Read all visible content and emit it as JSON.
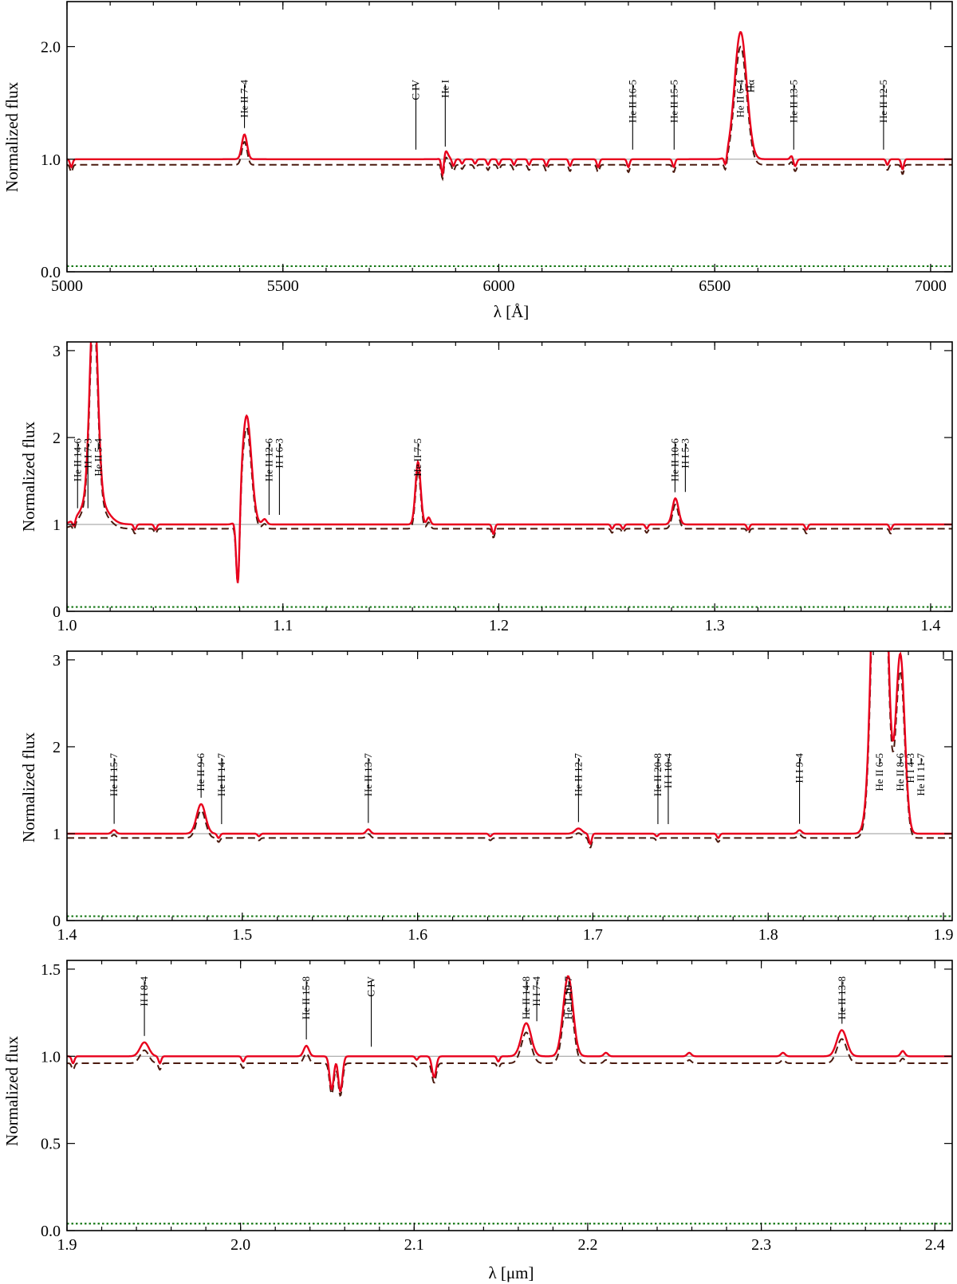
{
  "colors": {
    "model": "#e8001c",
    "observed": "#4a1a0f",
    "dotted": "#1a7a1a",
    "reference": "#999999"
  },
  "chart_data": [
    {
      "type": "line",
      "xlabel": "λ [Å]",
      "ylabel": "Normalized flux",
      "xlim": [
        5000,
        7050
      ],
      "ylim": [
        0,
        2.4
      ],
      "xticks": [
        5000,
        5500,
        6000,
        6500,
        7000
      ],
      "yticks": [
        0.0,
        1.0,
        2.0
      ],
      "ytick_labels": [
        "0.0",
        "1.0",
        "2.0"
      ],
      "continuum": 1.0,
      "series_styles": [
        "solid-red",
        "dashed-brown",
        "dotted-green"
      ],
      "dashed_level": 0.95,
      "dotted_level": 0.05,
      "emission": [
        [
          5411,
          0.22,
          6
        ],
        [
          5876,
          0.08,
          6
        ],
        [
          6560,
          1.13,
          14
        ],
        [
          6680,
          0.05,
          4
        ]
      ],
      "absorption": [
        [
          5010,
          0.07,
          3
        ],
        [
          5870,
          0.18,
          3
        ],
        [
          5895,
          0.06,
          3
        ],
        [
          5915,
          0.04,
          3
        ],
        [
          5945,
          0.04,
          3
        ],
        [
          5975,
          0.05,
          3
        ],
        [
          6000,
          0.05,
          3
        ],
        [
          6035,
          0.05,
          3
        ],
        [
          6070,
          0.05,
          3
        ],
        [
          6110,
          0.06,
          3
        ],
        [
          6165,
          0.06,
          3
        ],
        [
          6230,
          0.07,
          3
        ],
        [
          6300,
          0.07,
          3
        ],
        [
          6405,
          0.07,
          3
        ],
        [
          6525,
          0.09,
          3
        ],
        [
          6685,
          0.08,
          4
        ],
        [
          6900,
          0.05,
          3
        ],
        [
          6935,
          0.09,
          3
        ]
      ],
      "lines": [
        {
          "label": "He II 7-4",
          "x": 5411
        },
        {
          "label": "C IV",
          "x": 5808
        },
        {
          "label": "He I",
          "x": 5876
        },
        {
          "label": "He II 16-5",
          "x": 6310
        },
        {
          "label": "He II 15-5",
          "x": 6406
        },
        {
          "label": "He II 6-4",
          "x": 6560
        },
        {
          "label": "Hα",
          "x": 6563
        },
        {
          "label": "He II 13-5",
          "x": 6683
        },
        {
          "label": "He II 12-5",
          "x": 6891
        }
      ]
    },
    {
      "type": "line",
      "xlabel": "",
      "ylabel": "Normalized flux",
      "xlim": [
        1.0,
        1.41
      ],
      "ylim": [
        0,
        3.1
      ],
      "xticks": [
        1.0,
        1.1,
        1.2,
        1.3,
        1.4
      ],
      "xtick_labels": [
        "1.0",
        "1.1",
        "1.2",
        "1.3",
        "1.4"
      ],
      "yticks": [
        0,
        1,
        2,
        3
      ],
      "ytick_labels": [
        "0",
        "1",
        "2",
        "3"
      ],
      "continuum": 1.0,
      "series_styles": [
        "solid-red",
        "dashed-brown",
        "dotted-green"
      ],
      "dashed_level": 0.95,
      "dotted_level": 0.05,
      "emission": [
        [
          1.0124,
          2.3,
          0.0018
        ],
        [
          1.0124,
          0.35,
          0.005
        ],
        [
          1.0832,
          1.25,
          0.0022
        ],
        [
          1.0915,
          0.06,
          0.001
        ],
        [
          1.1626,
          0.72,
          0.0012
        ],
        [
          1.1675,
          0.08,
          0.0008
        ],
        [
          1.2818,
          0.3,
          0.0014
        ]
      ],
      "absorption": [
        [
          1.0792,
          0.9,
          0.0008
        ],
        [
          1.0032,
          0.08,
          0.0006
        ],
        [
          1.0315,
          0.06,
          0.0006
        ],
        [
          1.041,
          0.06,
          0.0006
        ],
        [
          1.1975,
          0.11,
          0.0006
        ],
        [
          1.2525,
          0.05,
          0.0006
        ],
        [
          1.2575,
          0.05,
          0.0006
        ],
        [
          1.2685,
          0.05,
          0.0006
        ],
        [
          1.3155,
          0.06,
          0.0006
        ],
        [
          1.3425,
          0.06,
          0.0006
        ],
        [
          1.3815,
          0.06,
          0.0006
        ]
      ],
      "lines": [
        {
          "label": "He II 14-6",
          "x": 1.0049
        },
        {
          "label": "H I 7-3",
          "x": 1.0049
        },
        {
          "label": "He II 5-4",
          "x": 1.0124
        },
        {
          "label": "He II 12-6",
          "x": 1.0936
        },
        {
          "label": "H I 6-3",
          "x": 1.0938
        },
        {
          "label": "He II 7-5",
          "x": 1.1626
        },
        {
          "label": "He II 10-6",
          "x": 1.2816
        },
        {
          "label": "H I 5-3",
          "x": 1.2818
        }
      ]
    },
    {
      "type": "line",
      "xlabel": "",
      "ylabel": "Normalized flux",
      "xlim": [
        1.4,
        1.905
      ],
      "ylim": [
        0,
        3.1
      ],
      "xticks": [
        1.4,
        1.5,
        1.6,
        1.7,
        1.8,
        1.9
      ],
      "xtick_labels": [
        "1.4",
        "1.5",
        "1.6",
        "1.7",
        "1.8",
        "1.9"
      ],
      "yticks": [
        0,
        1,
        2,
        3
      ],
      "ytick_labels": [
        "0",
        "1",
        "2",
        "3"
      ],
      "continuum": 1.0,
      "series_styles": [
        "solid-red",
        "dashed-brown",
        "dotted-green"
      ],
      "dashed_level": 0.95,
      "dotted_level": 0.05,
      "emission": [
        [
          1.4765,
          0.34,
          0.0025
        ],
        [
          1.8636,
          6.0,
          0.0035
        ],
        [
          1.8754,
          2.05,
          0.0025
        ],
        [
          1.6918,
          0.06,
          0.002
        ],
        [
          1.4268,
          0.04,
          0.0012
        ],
        [
          1.5719,
          0.05,
          0.0012
        ],
        [
          1.8179,
          0.04,
          0.0012
        ]
      ],
      "absorption": [
        [
          1.6985,
          0.12,
          0.0008
        ],
        [
          1.7715,
          0.05,
          0.0008
        ],
        [
          1.4865,
          0.05,
          0.0008
        ],
        [
          1.5095,
          0.03,
          0.0008
        ],
        [
          1.6415,
          0.03,
          0.0008
        ],
        [
          1.7365,
          0.03,
          0.0008
        ]
      ],
      "lines": [
        {
          "label": "He II 15-7",
          "x": 1.4269
        },
        {
          "label": "He II 9-6",
          "x": 1.4765
        },
        {
          "label": "He II 14-7",
          "x": 1.4882
        },
        {
          "label": "He II 13-7",
          "x": 1.5719
        },
        {
          "label": "He II 12-7",
          "x": 1.6918
        },
        {
          "label": "He II 20-8",
          "x": 1.7371
        },
        {
          "label": "H I 10-4",
          "x": 1.7367
        },
        {
          "label": "H I 9-4",
          "x": 1.8179
        },
        {
          "label": "He II 6-5",
          "x": 1.8636
        },
        {
          "label": "He II 8-6",
          "x": 1.8755
        },
        {
          "label": "H I 4-3",
          "x": 1.8756
        },
        {
          "label": "He II 11-7",
          "x": 1.8764
        }
      ]
    },
    {
      "type": "line",
      "xlabel": "λ [μm]",
      "ylabel": "Normalized flux",
      "xlim": [
        1.9,
        2.41
      ],
      "ylim": [
        0,
        1.55
      ],
      "xticks": [
        1.9,
        2.0,
        2.1,
        2.2,
        2.3,
        2.4
      ],
      "xtick_labels": [
        "1.9",
        "2.0",
        "2.1",
        "2.2",
        "2.3",
        "2.4"
      ],
      "yticks": [
        0.0,
        0.5,
        1.0,
        1.5
      ],
      "ytick_labels": [
        "0.0",
        "0.5",
        "1.0",
        "1.5"
      ],
      "continuum": 1.0,
      "series_styles": [
        "solid-red",
        "dashed-brown",
        "dotted-green"
      ],
      "dashed_level": 0.96,
      "dotted_level": 0.04,
      "emission": [
        [
          1.9446,
          0.08,
          0.0025
        ],
        [
          2.0379,
          0.06,
          0.0015
        ],
        [
          2.1646,
          0.19,
          0.0028
        ],
        [
          2.1887,
          0.46,
          0.0028
        ],
        [
          2.3464,
          0.15,
          0.0028
        ],
        [
          2.2105,
          0.02,
          0.0012
        ],
        [
          2.2585,
          0.02,
          0.0012
        ],
        [
          2.3125,
          0.02,
          0.0012
        ],
        [
          2.3815,
          0.03,
          0.0012
        ]
      ],
      "absorption": [
        [
          2.0525,
          0.19,
          0.0012
        ],
        [
          2.0575,
          0.2,
          0.0012
        ],
        [
          2.1115,
          0.12,
          0.0012
        ],
        [
          1.9035,
          0.04,
          0.0008
        ],
        [
          1.9535,
          0.04,
          0.0008
        ],
        [
          2.0015,
          0.03,
          0.0008
        ],
        [
          2.1015,
          0.02,
          0.0008
        ],
        [
          2.1485,
          0.03,
          0.0008
        ]
      ],
      "lines": [
        {
          "label": "H I 8-4",
          "x": 1.9446
        },
        {
          "label": "He II 15-8",
          "x": 2.0379
        },
        {
          "label": "C IV",
          "x": 2.0753
        },
        {
          "label": "He II 14-8",
          "x": 2.1647
        },
        {
          "label": "H I 7-4",
          "x": 2.1661
        },
        {
          "label": "He II 10-7",
          "x": 2.1891
        },
        {
          "label": "He II 13-8",
          "x": 2.3465
        }
      ]
    }
  ]
}
